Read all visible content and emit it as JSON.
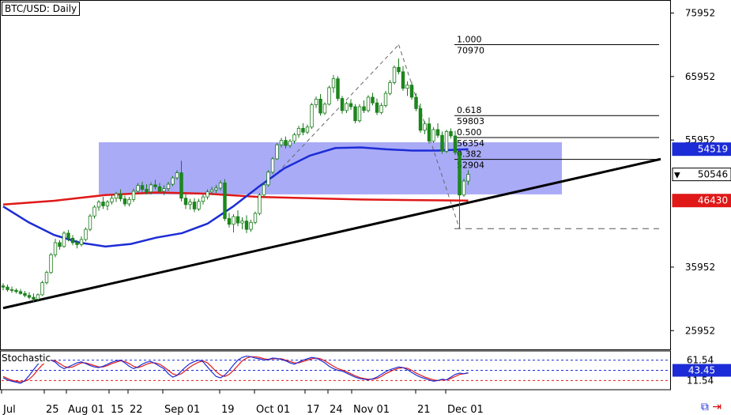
{
  "header": {
    "title": "BTC/USD: Daily"
  },
  "indicator": {
    "name": "Stochastic"
  },
  "colors": {
    "zone": "#9a9cf6",
    "sma_fast": "#1c2cd6",
    "sma_slow": "#e01818",
    "trendline": "#000000",
    "candle_up": "#1a8a1a",
    "candle_down": "#1a8a1a",
    "stoch_k": "#1c2cd6",
    "stoch_d": "#e01818",
    "price_badge_blue": "#1c2cd6",
    "price_badge_red": "#e01818"
  },
  "chart_data": {
    "type": "candlestick",
    "price_axis": {
      "ticks": [
        "75952",
        "65952",
        "55952",
        "35952",
        "25952"
      ],
      "ylim": [
        23000,
        78000
      ]
    },
    "time_axis": {
      "ticks": [
        "Jul",
        "25",
        "Aug 01",
        "15",
        "22",
        "Sep 01",
        "19",
        "Oct 01",
        "17",
        "24",
        "Nov 01",
        "21",
        "Dec 01"
      ]
    },
    "price_badges": [
      {
        "label": "54519",
        "value": 54519,
        "style": "blue"
      },
      {
        "label": "50546",
        "value": 50546,
        "style": "current"
      },
      {
        "label": "46430",
        "value": 46430,
        "style": "red"
      }
    ],
    "fibonacci": [
      {
        "ratio": "1.000",
        "price": "70970",
        "value": 70970
      },
      {
        "ratio": "0.618",
        "price": "59803",
        "value": 59803
      },
      {
        "ratio": "0.500",
        "price": "56354",
        "value": 56354
      },
      {
        "ratio": "0.382",
        "price": "52904",
        "value": 52904
      }
    ],
    "fib_base_level": 42000,
    "support_zone": {
      "low": 47400,
      "high": 55600
    },
    "trendline": {
      "start": [
        0,
        29500
      ],
      "end": [
        187,
        58500
      ]
    },
    "sma_fast": [
      [
        0,
        45500
      ],
      [
        10,
        43000
      ],
      [
        20,
        41000
      ],
      [
        30,
        39800
      ],
      [
        40,
        39200
      ],
      [
        50,
        39600
      ],
      [
        60,
        40600
      ],
      [
        70,
        41300
      ],
      [
        80,
        42800
      ],
      [
        90,
        45500
      ],
      [
        100,
        48600
      ],
      [
        110,
        51500
      ],
      [
        120,
        53500
      ],
      [
        130,
        54700
      ],
      [
        140,
        54800
      ],
      [
        150,
        54500
      ],
      [
        160,
        54300
      ],
      [
        170,
        54300
      ],
      [
        182,
        54519
      ]
    ],
    "sma_slow": [
      [
        0,
        45800
      ],
      [
        20,
        46400
      ],
      [
        40,
        47300
      ],
      [
        60,
        47700
      ],
      [
        80,
        47500
      ],
      [
        100,
        47000
      ],
      [
        120,
        46800
      ],
      [
        140,
        46600
      ],
      [
        160,
        46500
      ],
      [
        182,
        46430
      ]
    ],
    "candles": [
      [
        0,
        33000,
        33400,
        32300,
        32800
      ],
      [
        1,
        32800,
        33200,
        32100,
        32400
      ],
      [
        2,
        32400,
        32900,
        31900,
        32300
      ],
      [
        3,
        32300,
        32600,
        31800,
        32100
      ],
      [
        4,
        32100,
        32500,
        31600,
        31800
      ],
      [
        5,
        31800,
        32200,
        31200,
        31500
      ],
      [
        6,
        31500,
        32000,
        30900,
        31200
      ],
      [
        7,
        31200,
        31800,
        30500,
        30900
      ],
      [
        8,
        30900,
        31800,
        30500,
        31600
      ],
      [
        9,
        31600,
        33800,
        31400,
        33500
      ],
      [
        10,
        33500,
        35400,
        33200,
        35100
      ],
      [
        11,
        35100,
        38200,
        34900,
        37900
      ],
      [
        12,
        37900,
        40400,
        37500,
        39800
      ],
      [
        13,
        39800,
        40200,
        38700,
        39200
      ],
      [
        14,
        39200,
        41600,
        39000,
        41300
      ],
      [
        15,
        41300,
        41800,
        40000,
        40500
      ],
      [
        16,
        40500,
        41000,
        39400,
        39800
      ],
      [
        17,
        39800,
        40200,
        38900,
        39500
      ],
      [
        18,
        39500,
        40800,
        39200,
        40300
      ],
      [
        19,
        40300,
        42200,
        40000,
        41900
      ],
      [
        20,
        41900,
        44300,
        41600,
        44000
      ],
      [
        21,
        44000,
        45700,
        43600,
        45400
      ],
      [
        22,
        45400,
        46500,
        44800,
        46200
      ],
      [
        23,
        46200,
        47000,
        45100,
        45600
      ],
      [
        24,
        45600,
        46500,
        44900,
        46200
      ],
      [
        25,
        46200,
        47200,
        45800,
        46800
      ],
      [
        26,
        46800,
        47800,
        46200,
        47500
      ],
      [
        27,
        47500,
        48200,
        46300,
        46700
      ],
      [
        28,
        46700,
        47200,
        45500,
        45900
      ],
      [
        29,
        45900,
        47000,
        45500,
        46600
      ],
      [
        30,
        46600,
        48300,
        46200,
        47900
      ],
      [
        31,
        47900,
        49200,
        47500,
        48800
      ],
      [
        32,
        48800,
        49400,
        47800,
        48200
      ],
      [
        33,
        48200,
        49000,
        47400,
        47800
      ],
      [
        34,
        47800,
        49300,
        47400,
        48900
      ],
      [
        35,
        48900,
        49700,
        48200,
        48600
      ],
      [
        36,
        48600,
        49200,
        47600,
        47900
      ],
      [
        37,
        47900,
        48800,
        47300,
        48300
      ],
      [
        38,
        48300,
        49400,
        47900,
        49000
      ],
      [
        39,
        49000,
        50300,
        48700,
        50000
      ],
      [
        40,
        50000,
        51200,
        49700,
        50800
      ],
      [
        41,
        50800,
        52700,
        46300,
        46800
      ],
      [
        42,
        46800,
        47500,
        45100,
        45800
      ],
      [
        43,
        45800,
        46700,
        45000,
        46200
      ],
      [
        44,
        46200,
        46800,
        44600,
        45100
      ],
      [
        45,
        45100,
        46700,
        44800,
        46300
      ],
      [
        46,
        46300,
        47400,
        45800,
        47000
      ],
      [
        47,
        47000,
        48200,
        46600,
        47800
      ],
      [
        48,
        47800,
        48600,
        47300,
        48100
      ],
      [
        49,
        48100,
        48900,
        47600,
        48400
      ],
      [
        50,
        48400,
        49600,
        48000,
        49200
      ],
      [
        51,
        49200,
        49800,
        43200,
        43600
      ],
      [
        52,
        43600,
        44500,
        42200,
        42700
      ],
      [
        53,
        42700,
        44300,
        41400,
        43900
      ],
      [
        54,
        43900,
        44900,
        42400,
        42900
      ],
      [
        55,
        42900,
        43800,
        41900,
        43200
      ],
      [
        56,
        43200,
        44100,
        41300,
        41900
      ],
      [
        57,
        41900,
        43400,
        41500,
        43000
      ],
      [
        58,
        43000,
        44700,
        42700,
        44400
      ],
      [
        59,
        44400,
        47600,
        44100,
        47300
      ],
      [
        60,
        47300,
        49300,
        46900,
        48900
      ],
      [
        61,
        48900,
        51200,
        48600,
        50900
      ],
      [
        62,
        50900,
        53300,
        50600,
        53000
      ],
      [
        63,
        53000,
        55500,
        52800,
        55200
      ],
      [
        64,
        55200,
        56300,
        54800,
        55900
      ],
      [
        65,
        55900,
        56500,
        54600,
        55100
      ],
      [
        66,
        55100,
        56100,
        54700,
        55800
      ],
      [
        67,
        55800,
        57100,
        55400,
        56800
      ],
      [
        68,
        56800,
        58200,
        56300,
        57800
      ],
      [
        69,
        57800,
        58600,
        56700,
        57200
      ],
      [
        70,
        57200,
        58400,
        56900,
        58000
      ],
      [
        71,
        58000,
        61800,
        57700,
        61500
      ],
      [
        72,
        61500,
        62800,
        61000,
        62400
      ],
      [
        73,
        62400,
        63200,
        59800,
        60200
      ],
      [
        74,
        60200,
        61900,
        59900,
        61600
      ],
      [
        75,
        61600,
        64500,
        61400,
        64200
      ],
      [
        76,
        64200,
        66200,
        63400,
        65600
      ],
      [
        77,
        65600,
        66000,
        62100,
        62500
      ],
      [
        78,
        62500,
        62900,
        60100,
        60600
      ],
      [
        79,
        60600,
        62000,
        60200,
        61700
      ],
      [
        80,
        61700,
        62400,
        60700,
        61200
      ],
      [
        81,
        61200,
        61600,
        58600,
        59000
      ],
      [
        82,
        59000,
        61600,
        58700,
        61200
      ],
      [
        83,
        61200,
        62200,
        60200,
        60600
      ],
      [
        84,
        60600,
        63000,
        60300,
        62700
      ],
      [
        85,
        62700,
        63400,
        61400,
        61800
      ],
      [
        86,
        61800,
        62500,
        59900,
        60300
      ],
      [
        87,
        60300,
        61800,
        60000,
        61400
      ],
      [
        88,
        61400,
        63700,
        61100,
        63300
      ],
      [
        89,
        63300,
        65400,
        63000,
        65000
      ],
      [
        90,
        65000,
        67700,
        64700,
        67400
      ],
      [
        91,
        67400,
        68800,
        66300,
        66700
      ],
      [
        92,
        66700,
        67600,
        63700,
        64100
      ],
      [
        93,
        64100,
        65200,
        62900,
        64600
      ],
      [
        94,
        64600,
        65100,
        62300,
        62700
      ],
      [
        95,
        62700,
        63300,
        60500,
        60900
      ],
      [
        96,
        60900,
        61700,
        57100,
        57500
      ],
      [
        97,
        57500,
        58900,
        56900,
        58500
      ],
      [
        98,
        58500,
        59500,
        55400,
        55800
      ],
      [
        99,
        55800,
        58000,
        55500,
        57600
      ],
      [
        100,
        57600,
        58600,
        56300,
        56700
      ],
      [
        101,
        56700,
        57300,
        53800,
        54200
      ],
      [
        102,
        54200,
        57600,
        53900,
        57300
      ],
      [
        103,
        57300,
        57800,
        56200,
        56600
      ],
      [
        104,
        56600,
        57400,
        53600,
        54000
      ],
      [
        105,
        54000,
        54700,
        42000,
        47300
      ],
      [
        106,
        47300,
        49900,
        47000,
        49500
      ],
      [
        107,
        49500,
        51200,
        48900,
        50546
      ]
    ],
    "stochastic": {
      "levels": [
        "61.54",
        "43.45",
        "11.54"
      ],
      "level_values": [
        80,
        50,
        20
      ],
      "current_label": "43.45",
      "k": [
        28,
        22,
        18,
        15,
        12,
        20,
        35,
        52,
        68,
        78,
        82,
        80,
        74,
        62,
        55,
        60,
        66,
        72,
        75,
        70,
        64,
        60,
        58,
        62,
        68,
        74,
        78,
        80,
        72,
        62,
        55,
        60,
        68,
        74,
        76,
        70,
        62,
        55,
        40,
        30,
        35,
        48,
        60,
        70,
        76,
        80,
        75,
        60,
        45,
        32,
        28,
        36,
        50,
        66,
        80,
        88,
        92,
        90,
        86,
        84,
        80,
        82,
        86,
        85,
        82,
        78,
        72,
        68,
        74,
        80,
        84,
        88,
        86,
        80,
        72,
        62,
        55,
        50,
        48,
        42,
        36,
        30,
        26,
        24,
        22,
        25,
        30,
        38,
        46,
        52,
        56,
        60,
        58,
        52,
        44,
        36,
        30,
        26,
        22,
        18,
        20,
        24,
        22,
        30,
        38,
        42,
        40,
        43
      ],
      "d": [
        32,
        26,
        21,
        18,
        16,
        18,
        24,
        36,
        52,
        66,
        76,
        80,
        78,
        70,
        62,
        58,
        60,
        66,
        72,
        72,
        68,
        64,
        60,
        60,
        64,
        70,
        74,
        78,
        76,
        70,
        62,
        58,
        62,
        68,
        72,
        72,
        68,
        60,
        50,
        40,
        36,
        40,
        50,
        60,
        68,
        74,
        78,
        72,
        60,
        46,
        36,
        32,
        38,
        50,
        64,
        78,
        86,
        90,
        90,
        88,
        84,
        82,
        84,
        84,
        84,
        80,
        76,
        72,
        72,
        76,
        80,
        84,
        86,
        84,
        78,
        70,
        62,
        55,
        51,
        46,
        40,
        34,
        29,
        26,
        24,
        24,
        26,
        32,
        40,
        46,
        52,
        56,
        58,
        56,
        50,
        42,
        36,
        30,
        26,
        22,
        20,
        22,
        22,
        26,
        32,
        38,
        40,
        42
      ]
    }
  }
}
